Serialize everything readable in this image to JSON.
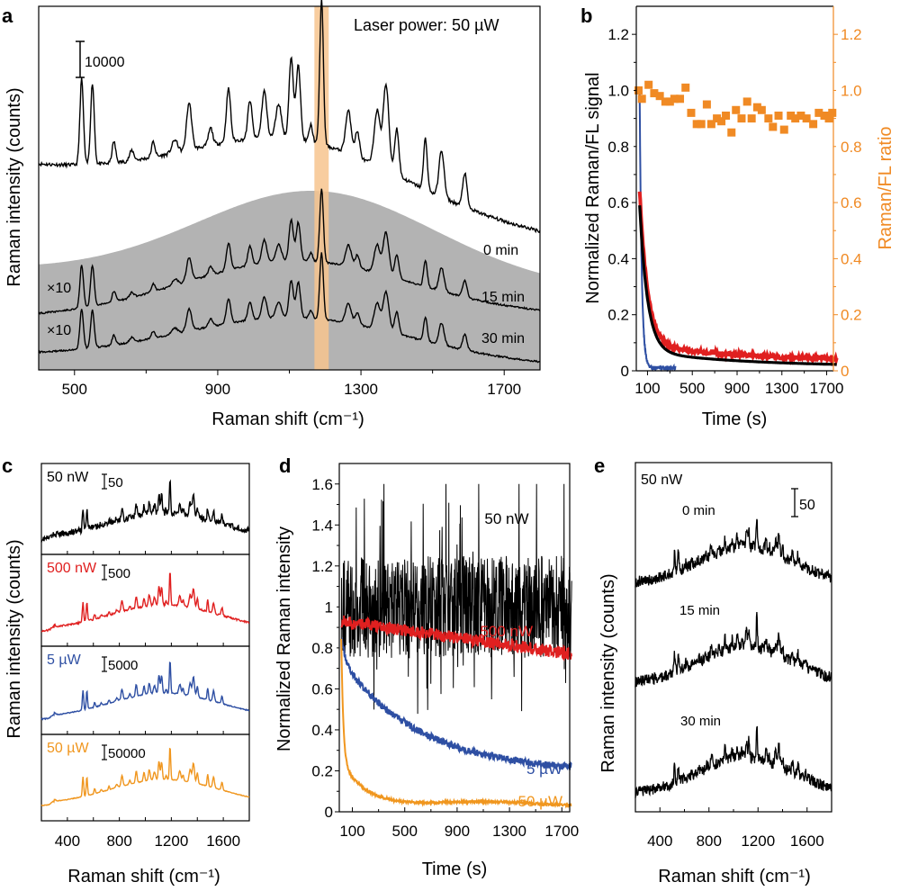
{
  "chart_data": [
    {
      "id": "a",
      "type": "line",
      "panel_label": "a",
      "title": "Laser power: 50 µW",
      "xlabel": "Raman shift (cm⁻¹)",
      "ylabel": "Raman intensity (counts)",
      "xlim": [
        400,
        1800
      ],
      "xticks": [
        500,
        900,
        1300,
        1700
      ],
      "scale_bar_label": "10000",
      "highlight_band": {
        "from": 1170,
        "to": 1210,
        "color": "#f7c48e"
      },
      "peaks": [
        520,
        550,
        610,
        660,
        720,
        780,
        820,
        930,
        990,
        1030,
        1080,
        1110,
        1125,
        1190,
        1260,
        1290,
        1340,
        1370,
        1395,
        1480,
        1525,
        1590
      ],
      "series": [
        {
          "name": "0 min",
          "label": "0 min",
          "multiplier": "",
          "color": "#000000"
        },
        {
          "name": "15 min",
          "label": "15 min",
          "multiplier": "×10",
          "color": "#000000"
        },
        {
          "name": "30 min",
          "label": "30 min",
          "multiplier": "×10",
          "color": "#000000"
        }
      ],
      "background_fill": "#b3b3b3"
    },
    {
      "id": "b",
      "type": "line",
      "panel_label": "b",
      "xlabel": "Time (s)",
      "ylabel": "Normalized Raman/FL signal",
      "y2label": "Raman/FL ratio",
      "xlim": [
        0,
        1760
      ],
      "ylim": [
        0,
        1.3
      ],
      "y2lim": [
        0,
        1.3
      ],
      "xticks": [
        100,
        500,
        900,
        1300,
        1700
      ],
      "yticks": [
        0,
        0.2,
        0.4,
        0.6,
        0.8,
        1.0,
        1.2
      ],
      "y2ticks": [
        0,
        0.2,
        0.4,
        0.6,
        0.8,
        1.0,
        1.2
      ],
      "ytick_labels": [
        "0",
        "0.2",
        "0.4",
        "0.6",
        "0.8",
        "1.0",
        "1.2"
      ],
      "series": [
        {
          "name": "Raman (blue)",
          "color": "#2e4fa3",
          "decay": {
            "a": 1.0,
            "tau": 18,
            "floor": 0.01
          },
          "xmax": 320
        },
        {
          "name": "FL (red)",
          "color": "#e02020",
          "decay": {
            "a": 0.58,
            "tau": 95,
            "floor": 0.035
          },
          "xmax": 1760
        },
        {
          "name": "Raman fit (black)",
          "color": "#000000",
          "decay": {
            "a": 0.6,
            "tau": 90,
            "floor": 0.02
          },
          "xmax": 1760
        }
      ],
      "ratio_series": {
        "name": "Raman/FL ratio",
        "color": "#f08a24",
        "x": [
          20,
          50,
          110,
          160,
          210,
          260,
          300,
          340,
          390,
          440,
          490,
          540,
          580,
          630,
          670,
          720,
          760,
          800,
          850,
          890,
          940,
          990,
          1030,
          1080,
          1120,
          1180,
          1220,
          1270,
          1320,
          1380,
          1420,
          1470,
          1520,
          1580,
          1630,
          1680,
          1720,
          1750
        ],
        "y": [
          1.0,
          0.97,
          1.02,
          0.99,
          0.98,
          0.96,
          0.96,
          0.97,
          0.97,
          1.01,
          0.92,
          0.88,
          0.88,
          0.95,
          0.88,
          0.9,
          0.89,
          0.91,
          0.85,
          0.93,
          0.9,
          0.96,
          0.9,
          0.94,
          0.93,
          0.9,
          0.87,
          0.91,
          0.86,
          0.91,
          0.9,
          0.91,
          0.9,
          0.88,
          0.92,
          0.91,
          0.9,
          0.92
        ]
      }
    },
    {
      "id": "c",
      "type": "line",
      "panel_label": "c",
      "xlabel": "Raman shift (cm⁻¹)",
      "ylabel": "Raman intensity (counts)",
      "xlim": [
        200,
        1800
      ],
      "xticks": [
        400,
        800,
        1200,
        1600
      ],
      "series": [
        {
          "name": "50 nW",
          "label": "50 nW",
          "scale_bar_label": "50",
          "color": "#000000",
          "noise": 0.9
        },
        {
          "name": "500 nW",
          "label": "500 nW",
          "scale_bar_label": "500",
          "color": "#e02020",
          "noise": 0.25
        },
        {
          "name": "5 µW",
          "label": "5 µW",
          "scale_bar_label": "5000",
          "color": "#2e4fa3",
          "noise": 0.15
        },
        {
          "name": "50 µW",
          "label": "50 µW",
          "scale_bar_label": "50000",
          "color": "#f0961e",
          "noise": 0.1
        }
      ]
    },
    {
      "id": "d",
      "type": "line",
      "panel_label": "d",
      "xlabel": "Time (s)",
      "ylabel": "Normalized Raman intensity",
      "xlim": [
        0,
        1760
      ],
      "ylim": [
        0,
        1.7
      ],
      "xticks": [
        100,
        500,
        900,
        1300,
        1700
      ],
      "yticks": [
        0,
        0.2,
        0.4,
        0.6,
        0.8,
        1,
        1.2,
        1.4,
        1.6
      ],
      "ytick_labels": [
        "0",
        "0.2",
        "0.4",
        "0.6",
        "0.8",
        "1",
        "1.2",
        "1.4",
        "1.6"
      ],
      "series": [
        {
          "name": "50 nW",
          "label": "50 nW",
          "color": "#000000",
          "start": 1.0,
          "end": 1.0,
          "noise": 0.25
        },
        {
          "name": "500 nW",
          "label": "500 nW",
          "color": "#e02020",
          "start": 0.93,
          "end": 0.77,
          "noise": 0.03
        },
        {
          "name": "5 µW",
          "label": "5 µW",
          "color": "#2e4fa3",
          "start": 0.72,
          "end": 0.19,
          "noise": 0.015
        },
        {
          "name": "50 µW",
          "label": "50 µW",
          "color": "#f0961e",
          "start": 0.45,
          "end": 0.03,
          "noise": 0.008
        }
      ]
    },
    {
      "id": "e",
      "type": "line",
      "panel_label": "e",
      "title": "50 nW",
      "xlabel": "Raman shift (cm⁻¹)",
      "ylabel": "Raman intensity (counts)",
      "xlim": [
        200,
        1800
      ],
      "xticks": [
        400,
        800,
        1200,
        1600
      ],
      "scale_bar_label": "50",
      "series": [
        {
          "name": "0 min",
          "label": "0 min",
          "color": "#000000"
        },
        {
          "name": "15 min",
          "label": "15 min",
          "color": "#000000"
        },
        {
          "name": "30 min",
          "label": "30 min",
          "color": "#000000"
        }
      ]
    }
  ]
}
